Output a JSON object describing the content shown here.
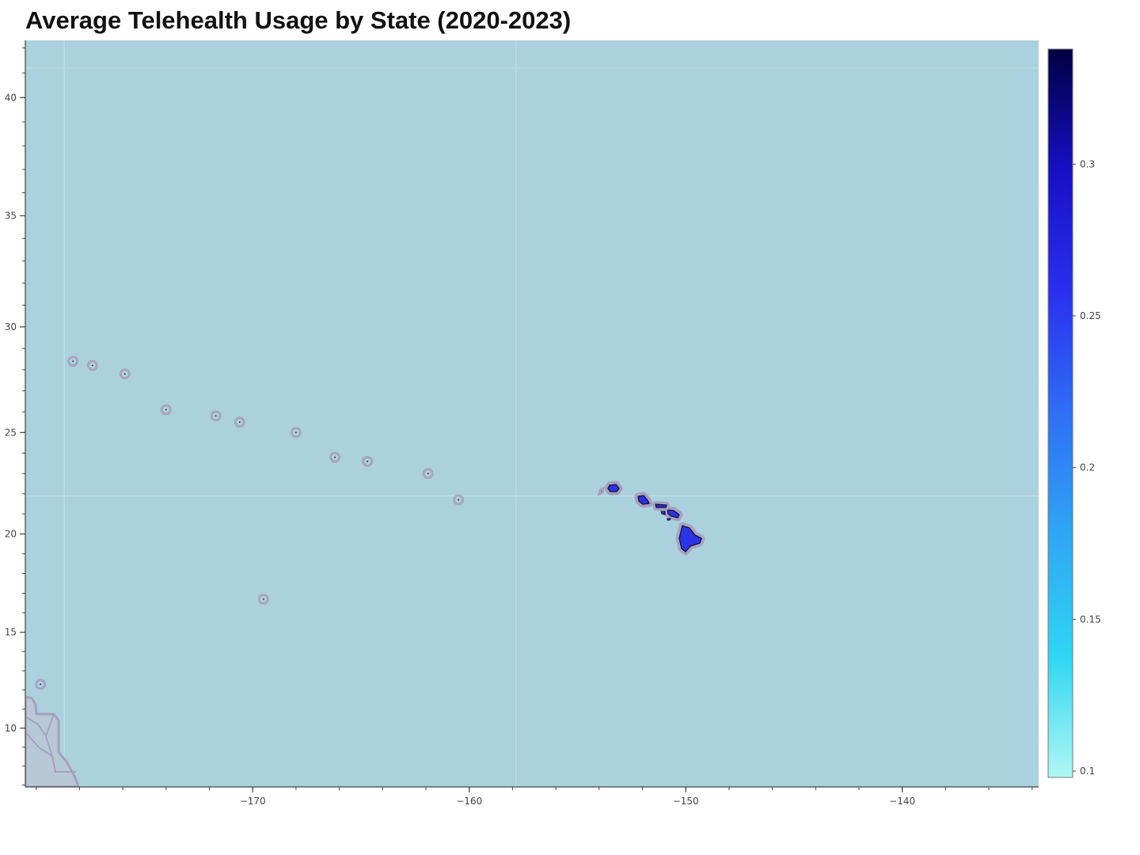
{
  "title": "Average Telehealth Usage by State (2020-2023)",
  "map": {
    "ocean_color": "#abd1de",
    "land_fill_color": "#2a33e6",
    "outline_color": "#a79fbf",
    "lon_range": [
      -180.5,
      -133.7
    ],
    "lat_range": [
      6.9,
      42.3
    ],
    "x_ticks": [
      -170,
      -160,
      -150,
      -140
    ],
    "y_ticks": [
      10,
      15,
      20,
      25,
      30,
      35,
      40
    ],
    "x_tick_labels": [
      "−170",
      "−160",
      "−150",
      "−140"
    ],
    "y_tick_labels": [
      "10",
      "15",
      "20",
      "25",
      "30",
      "35",
      "40"
    ],
    "minor_x_step": 2,
    "minor_y_step": 1,
    "islands_small": [
      [
        -178.3,
        28.4
      ],
      [
        -177.4,
        28.2
      ],
      [
        -175.9,
        27.8
      ],
      [
        -174.0,
        26.1
      ],
      [
        -171.7,
        25.8
      ],
      [
        -170.6,
        25.5
      ],
      [
        -168.0,
        25.0
      ],
      [
        -166.2,
        23.8
      ],
      [
        -164.7,
        23.6
      ],
      [
        -161.9,
        23.0
      ],
      [
        -160.5,
        21.7
      ],
      [
        -169.5,
        16.7
      ],
      [
        -179.8,
        12.3
      ]
    ]
  },
  "colorbar": {
    "min": 0.1,
    "max": 0.34,
    "ticks": [
      0.1,
      0.15,
      0.2,
      0.25,
      0.3
    ],
    "tick_labels": [
      "0.1",
      "0.15",
      "0.2",
      "0.25",
      "0.3"
    ],
    "stops": [
      {
        "value": 0.1,
        "color": "#aff7f2"
      },
      {
        "value": 0.14,
        "color": "#2ed6f3"
      },
      {
        "value": 0.18,
        "color": "#2fa6f3"
      },
      {
        "value": 0.22,
        "color": "#2e6ff4"
      },
      {
        "value": 0.26,
        "color": "#2a2fee"
      },
      {
        "value": 0.3,
        "color": "#1610c5"
      },
      {
        "value": 0.34,
        "color": "#000040"
      }
    ]
  }
}
